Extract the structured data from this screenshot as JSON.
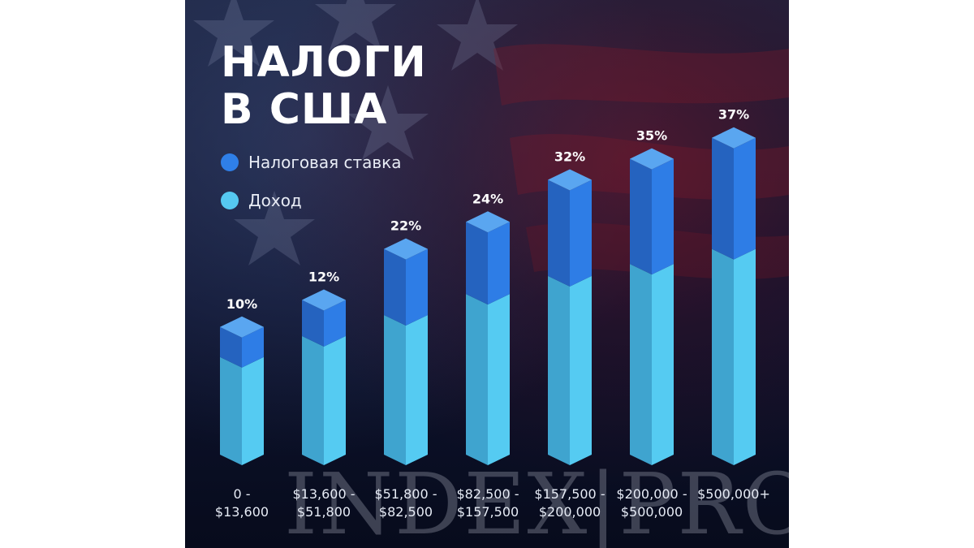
{
  "title": {
    "line1": "НАЛОГИ",
    "line2": "В США"
  },
  "legend": [
    {
      "label": "Налоговая ставка",
      "color": "#2f7fe8"
    },
    {
      "label": "Доход",
      "color": "#55c8f0"
    }
  ],
  "watermark": "INDEX|PRO",
  "colors": {
    "tax_front": "#2e7de6",
    "tax_side": "#2563bf",
    "tax_top": "#5aa6f0",
    "income_front": "#55cbf2",
    "income_side": "#3fa4cf",
    "background": "#0e1430"
  },
  "chart_data": {
    "type": "bar",
    "stacked": true,
    "categories": [
      [
        "0 -",
        "$13,600"
      ],
      [
        "$13,600 -",
        "$51,800"
      ],
      [
        "$51,800 -",
        "$82,500"
      ],
      [
        "$82,500 -",
        "$157,500"
      ],
      [
        "$157,500 -",
        "$200,000"
      ],
      [
        "$200,000 -",
        "$500,000"
      ],
      [
        "$500,000+"
      ]
    ],
    "tax_rate_labels": [
      "10%",
      "12%",
      "22%",
      "24%",
      "32%",
      "35%",
      "37%"
    ],
    "tax_rate_values": [
      10,
      12,
      22,
      24,
      32,
      35,
      37
    ],
    "series": [
      {
        "name": "Доход",
        "values": [
          36,
          43,
          50,
          57,
          63,
          67,
          72
        ]
      },
      {
        "name": "Налоговая ставка",
        "values": [
          10,
          12,
          22,
          24,
          32,
          35,
          37
        ]
      }
    ],
    "legend_position": "top-left",
    "grid": false
  }
}
